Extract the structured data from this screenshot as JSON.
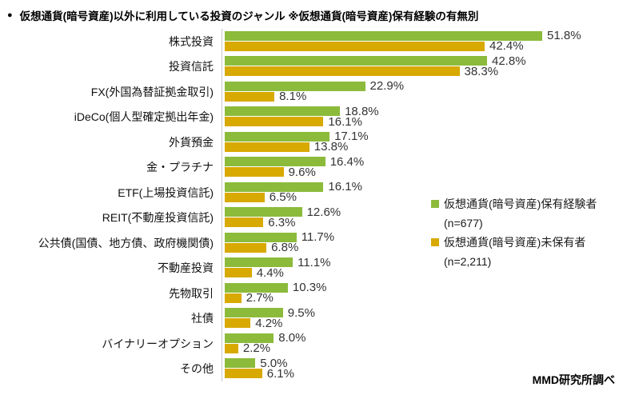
{
  "header": {
    "bullet": "●",
    "title": "仮想通貨(暗号資産)以外に利用している投資のジャンル ※仮想通貨(暗号資産)保有経験の有無別"
  },
  "legend": {
    "items": [
      {
        "label": "仮想通貨(暗号資産)保有経験者",
        "n_label": "(n=677)",
        "color": "#8CBB3B"
      },
      {
        "label": "仮想通貨(暗号資産)未保有者",
        "n_label": "(n=2,211)",
        "color": "#D8A900"
      }
    ]
  },
  "footer": {
    "source": "MMD研究所調べ"
  },
  "colors": {
    "holders_green": "#8CBB3B",
    "nonholders_yellow": "#D8A900",
    "axis_gray": "#c9c9c9"
  },
  "chart_data": {
    "type": "bar",
    "orientation": "horizontal",
    "title": "仮想通貨(暗号資産)以外に利用している投資のジャンル ※仮想通貨(暗号資産)保有経験の有無別",
    "categories": [
      "株式投資",
      "投資信託",
      "FX(外国為替証拠金取引)",
      "iDeCo(個人型確定拠出年金)",
      "外貨預金",
      "金・プラチナ",
      "ETF(上場投資信託)",
      "REIT(不動産投資信託)",
      "公共債(国債、地方債、政府機関債)",
      "不動産投資",
      "先物取引",
      "社債",
      "バイナリーオプション",
      "その他"
    ],
    "series": [
      {
        "name": "仮想通貨(暗号資産)保有経験者(n=677)",
        "color": "#8CBB3B",
        "values": [
          51.8,
          42.8,
          22.9,
          18.8,
          17.1,
          16.4,
          16.1,
          12.6,
          11.7,
          11.1,
          10.3,
          9.5,
          8.0,
          5.0
        ]
      },
      {
        "name": "仮想通貨(暗号資産)未保有者(n=2,211)",
        "color": "#D8A900",
        "values": [
          42.4,
          38.3,
          8.1,
          16.1,
          13.8,
          9.6,
          6.5,
          6.3,
          6.8,
          4.4,
          2.7,
          4.2,
          2.2,
          6.1
        ]
      }
    ],
    "value_suffix": "%",
    "xlim": [
      0,
      55
    ],
    "grid": false,
    "data_labels": true,
    "legend_position": "right-middle",
    "source": "MMD研究所調べ"
  }
}
